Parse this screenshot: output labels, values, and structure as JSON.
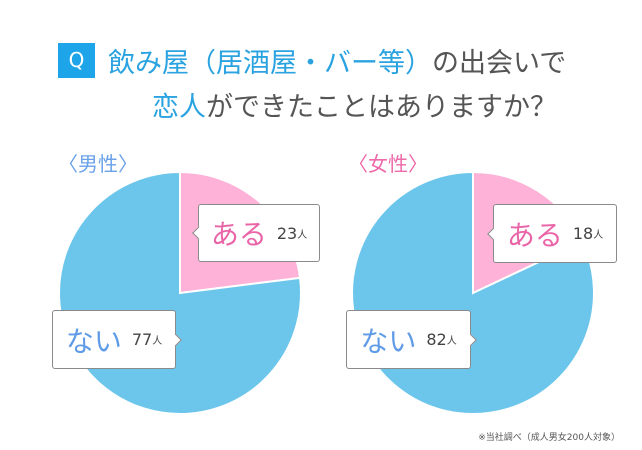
{
  "title": {
    "badge": "Q",
    "line1_highlight": "飲み屋（居酒屋・バー等）",
    "line1_rest": "の出会いで",
    "line2_highlight": "恋人",
    "line2_rest": "ができたことはありますか？"
  },
  "colors": {
    "badge": "#1ea4e8",
    "highlight": "#2aa3e0",
    "yes_slice": "#ffb2d8",
    "no_slice": "#6cc6ec",
    "yes_text": "#e965a8",
    "no_text": "#5f9be6",
    "male_label": "#6aa2e8",
    "female_label": "#ee6aaa"
  },
  "charts": {
    "male": {
      "label": "〈男性〉",
      "yes": {
        "answer": "ある",
        "count": "23",
        "unit": "人"
      },
      "no": {
        "answer": "ない",
        "count": "77",
        "unit": "人"
      }
    },
    "female": {
      "label": "〈女性〉",
      "yes": {
        "answer": "ある",
        "count": "18",
        "unit": "人"
      },
      "no": {
        "answer": "ない",
        "count": "82",
        "unit": "人"
      }
    }
  },
  "footnote": "※当社調べ（成人男女200人対象）",
  "chart_data": [
    {
      "type": "pie",
      "title": "〈男性〉",
      "categories": [
        "ある",
        "ない"
      ],
      "values": [
        23,
        77
      ],
      "unit": "人"
    },
    {
      "type": "pie",
      "title": "〈女性〉",
      "categories": [
        "ある",
        "ない"
      ],
      "values": [
        18,
        82
      ],
      "unit": "人"
    }
  ]
}
